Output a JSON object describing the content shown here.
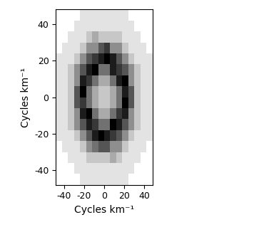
{
  "chart_data": {
    "type": "heatmap",
    "x_label": "Cycles km⁻¹",
    "y_label": "Cycles km⁻¹",
    "xlim": [
      -48,
      48
    ],
    "ylim": [
      -48,
      48
    ],
    "xticks": [
      -40,
      -20,
      0,
      20,
      40
    ],
    "yticks": [
      -40,
      -20,
      0,
      20,
      40
    ],
    "x": [
      -45,
      -39,
      -33,
      -27,
      -21,
      -15,
      -9,
      -3,
      3,
      9,
      15,
      21,
      27,
      33,
      39,
      45
    ],
    "y": [
      -45,
      -39,
      -33,
      -27,
      -21,
      -15,
      -9,
      -3,
      3,
      9,
      15,
      21,
      27,
      33,
      39,
      45
    ],
    "color": "gray_r",
    "cells": [
      [
        0,
        0,
        0,
        0,
        1,
        1,
        1,
        1,
        1,
        1,
        1,
        1,
        0,
        0,
        0,
        0
      ],
      [
        0,
        0,
        0,
        1,
        1,
        1,
        1,
        1,
        1,
        1,
        1,
        1,
        1,
        0,
        0,
        0
      ],
      [
        0,
        0,
        1,
        1,
        1,
        2,
        2,
        2,
        2,
        3,
        2,
        1,
        1,
        1,
        0,
        0
      ],
      [
        0,
        1,
        1,
        1,
        2,
        4,
        5,
        6,
        6,
        4,
        4,
        2,
        1,
        1,
        1,
        0
      ],
      [
        1,
        1,
        1,
        2,
        4,
        6,
        8,
        9,
        8,
        7,
        6,
        4,
        2,
        1,
        1,
        1
      ],
      [
        1,
        1,
        2,
        4,
        6,
        8,
        7,
        5,
        5,
        9,
        8,
        6,
        4,
        2,
        1,
        1
      ],
      [
        1,
        1,
        2,
        4,
        8,
        9,
        5,
        3,
        3,
        5,
        7,
        8,
        4,
        2,
        1,
        1
      ],
      [
        1,
        1,
        2,
        6,
        7,
        5,
        3,
        2,
        2,
        3,
        5,
        9,
        6,
        2,
        1,
        1
      ],
      [
        1,
        1,
        2,
        6,
        9,
        5,
        3,
        2,
        2,
        3,
        5,
        8,
        6,
        2,
        1,
        1
      ],
      [
        1,
        1,
        2,
        4,
        8,
        7,
        5,
        3,
        3,
        5,
        8,
        9,
        4,
        2,
        1,
        1
      ],
      [
        1,
        1,
        2,
        4,
        6,
        8,
        9,
        5,
        5,
        8,
        7,
        6,
        4,
        2,
        1,
        1
      ],
      [
        1,
        1,
        1,
        2,
        4,
        6,
        7,
        8,
        9,
        8,
        6,
        4,
        2,
        1,
        1,
        1
      ],
      [
        0,
        1,
        1,
        1,
        2,
        4,
        4,
        6,
        7,
        4,
        4,
        2,
        1,
        1,
        1,
        0
      ],
      [
        0,
        0,
        1,
        1,
        1,
        2,
        3,
        2,
        2,
        2,
        2,
        1,
        1,
        1,
        0,
        0
      ],
      [
        0,
        0,
        0,
        1,
        1,
        1,
        1,
        1,
        1,
        1,
        1,
        1,
        1,
        0,
        0,
        0
      ],
      [
        0,
        0,
        0,
        0,
        1,
        1,
        1,
        1,
        1,
        1,
        1,
        1,
        0,
        0,
        0,
        0
      ]
    ]
  }
}
